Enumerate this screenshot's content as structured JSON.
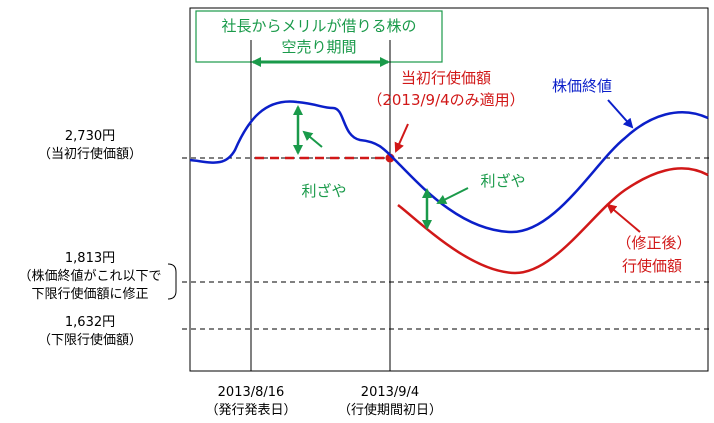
{
  "chart_data": {
    "type": "line",
    "title_lines": [
      "社長からメリルが借りる株の",
      "空売り期間"
    ],
    "series": [
      {
        "name": "株価終値",
        "color": "#0b1fc9"
      },
      {
        "name_lines": [
          "（修正後）",
          "行使価額"
        ],
        "color": "#d11818"
      }
    ],
    "initial_price_annotation": [
      "当初行使価額",
      "（2013/9/4のみ適用）"
    ],
    "spread_label": "利ざや",
    "y_levels": [
      {
        "value_label": "2,730円",
        "sub_lines": [
          "（当初行使価額）"
        ],
        "style": "dashed"
      },
      {
        "value_label": "1,813円",
        "sub_lines": [
          "（株価終値がこれ以下で",
          "下限行使価額に修正"
        ],
        "style": "dashed"
      },
      {
        "value_label": "1,632円",
        "sub_lines": [
          "（下限行使価額）"
        ],
        "style": "dashed"
      }
    ],
    "x_markers": [
      {
        "date": "2013/8/16",
        "sub": "（発行発表日）"
      },
      {
        "date": "2013/9/4",
        "sub": "（行使期間初日）"
      }
    ],
    "colors": {
      "green": "#1a9a4a",
      "red": "#d11818",
      "blue": "#0b1fc9"
    }
  }
}
